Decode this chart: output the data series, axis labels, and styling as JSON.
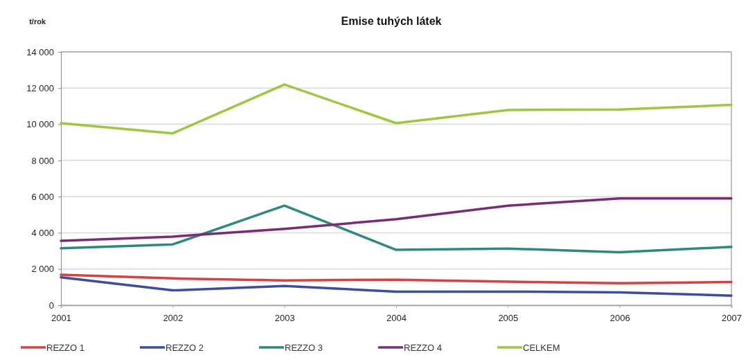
{
  "chart_data": {
    "type": "line",
    "title": "Emise tuhých látek",
    "ylabel": "t/rok",
    "categories": [
      "2001",
      "2002",
      "2003",
      "2004",
      "2005",
      "2006",
      "2007"
    ],
    "series": [
      {
        "name": "REZZO 1",
        "color": "#e03c3c",
        "values": [
          1680,
          1480,
          1370,
          1410,
          1300,
          1210,
          1280
        ]
      },
      {
        "name": "REZZO 2",
        "color": "#3c4aa8",
        "values": [
          1540,
          820,
          1060,
          750,
          750,
          710,
          530
        ]
      },
      {
        "name": "REZZO 3",
        "color": "#2a8a80",
        "values": [
          3150,
          3360,
          5500,
          3060,
          3130,
          2930,
          3220
        ]
      },
      {
        "name": "REZZO 4",
        "color": "#7a2a78",
        "values": [
          3560,
          3790,
          4220,
          4750,
          5500,
          5900,
          5900
        ]
      },
      {
        "name": "CELKEM",
        "color": "#9cc83c",
        "values": [
          10060,
          9500,
          12200,
          10060,
          10790,
          10820,
          11070
        ]
      }
    ],
    "ylim": [
      0,
      14000
    ],
    "yticks": [
      0,
      {
        "value": 2000,
        "label": "2 000"
      },
      {
        "value": 4000,
        "label": "4 000"
      },
      {
        "value": 6000,
        "label": "6 000"
      },
      {
        "value": 8000,
        "label": "8 000"
      },
      {
        "value": 10000,
        "label": "10 000"
      },
      {
        "value": 12000,
        "label": "12 000"
      },
      {
        "value": 14000,
        "label": "14 000"
      }
    ],
    "grid": "y",
    "legend": "bottom",
    "marker": "none",
    "line_style": "solid"
  }
}
